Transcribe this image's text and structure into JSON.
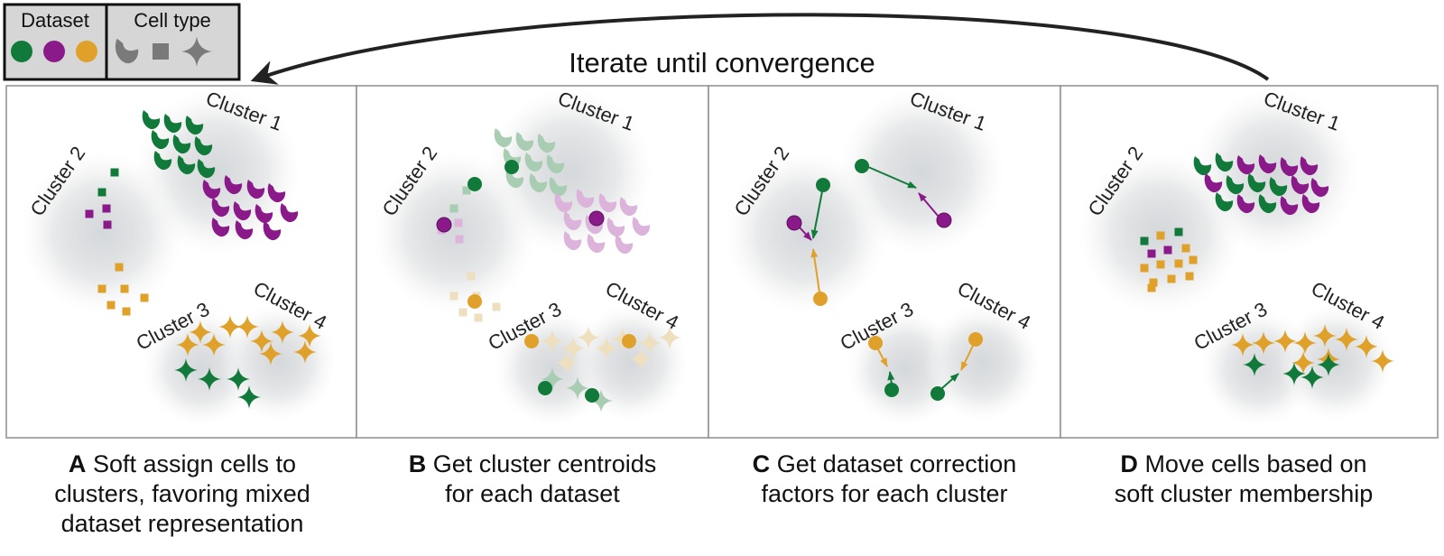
{
  "legend": {
    "dataset_title": "Dataset",
    "celltype_title": "Cell type",
    "dataset_colors": [
      "#117a3a",
      "#8a1a8a",
      "#e0a12a"
    ],
    "celltype_icons": [
      "crescent-cell-icon",
      "square-cell-icon",
      "star-cell-icon"
    ]
  },
  "iterate_label": "Iterate until convergence",
  "cluster_labels": [
    "Cluster 1",
    "Cluster 2",
    "Cluster 3",
    "Cluster 4"
  ],
  "panels": [
    {
      "letter": "A",
      "caption_lines": [
        "Soft assign cells to",
        "clusters, favoring mixed",
        "dataset representation"
      ]
    },
    {
      "letter": "B",
      "caption_lines": [
        "Get cluster centroids",
        "for each dataset"
      ]
    },
    {
      "letter": "C",
      "caption_lines": [
        "Get dataset correction",
        "factors for each cluster"
      ]
    },
    {
      "letter": "D",
      "caption_lines": [
        "Move cells based on",
        "soft cluster membership"
      ]
    }
  ],
  "colors": {
    "green": "#117a3a",
    "purple": "#8a1a8a",
    "gold": "#e0a12a",
    "green_light": "#a8cdb3",
    "purple_light": "#dbb3db",
    "gold_light": "#eedfbf",
    "gray_icon": "#7a7a7a"
  }
}
